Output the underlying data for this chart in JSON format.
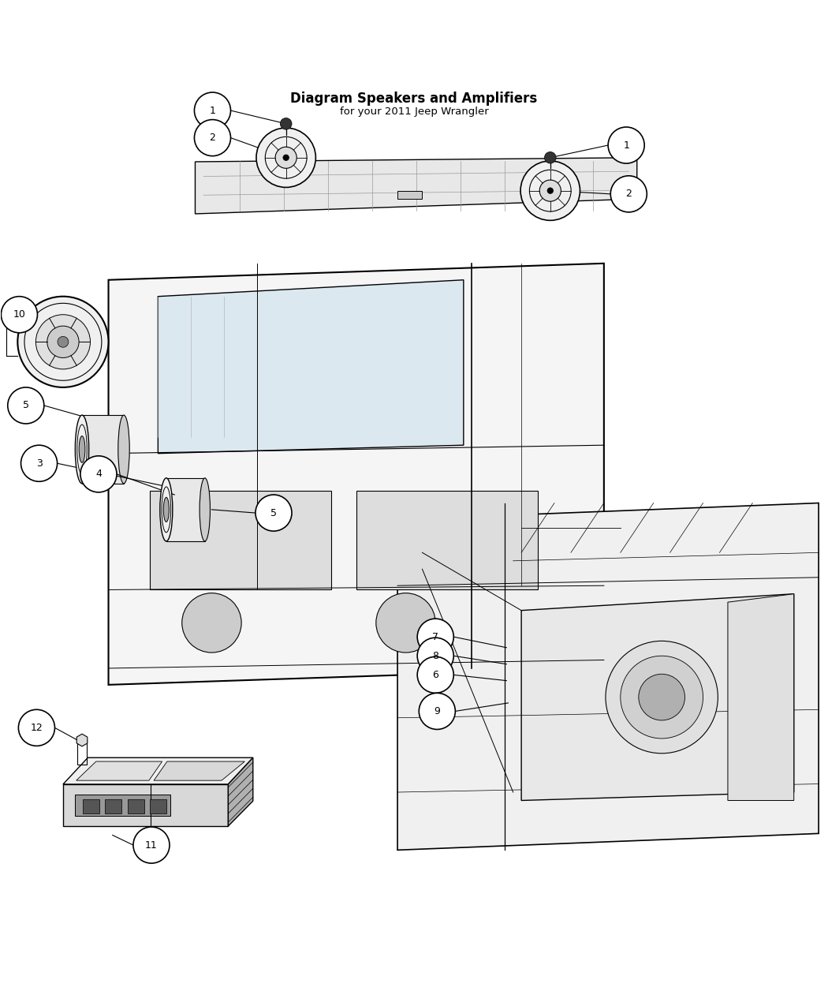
{
  "title": "Diagram Speakers and Amplifiers",
  "subtitle": "for your 2011 Jeep Wrangler",
  "bg_color": "#ffffff",
  "line_color": "#000000",
  "callout_bg": "#ffffff",
  "callout_border": "#000000",
  "text_color": "#000000",
  "fig_width": 10.5,
  "fig_height": 12.75
}
